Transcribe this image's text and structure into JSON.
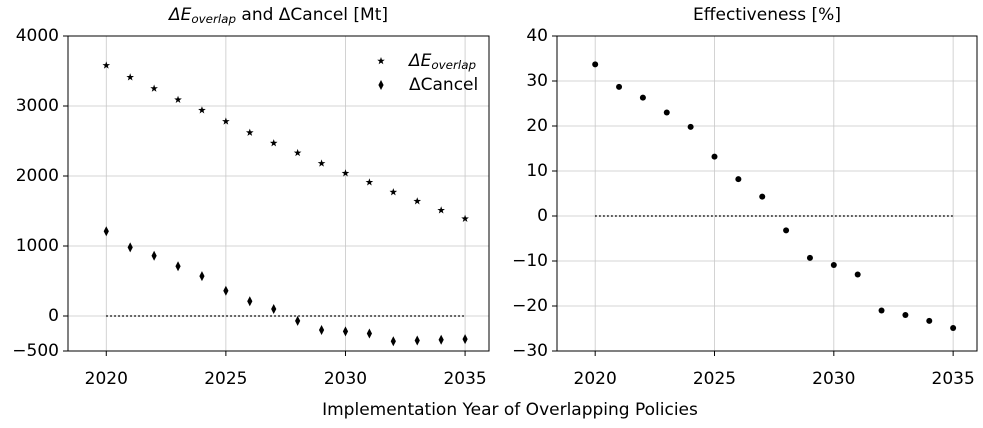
{
  "xlabel": "Implementation Year of Overlapping Policies",
  "chart_data": [
    {
      "type": "scatter",
      "title": [
        "ΔE",
        "overlap",
        " and ΔCancel [Mt]"
      ],
      "x": [
        2020,
        2021,
        2022,
        2023,
        2024,
        2025,
        2026,
        2027,
        2028,
        2029,
        2030,
        2031,
        2032,
        2033,
        2034,
        2035
      ],
      "series": [
        {
          "name": [
            "ΔE",
            "overlap"
          ],
          "color": "#000000",
          "marker": "star",
          "values": [
            3580,
            3410,
            3250,
            3090,
            2940,
            2780,
            2620,
            2470,
            2330,
            2180,
            2040,
            1910,
            1770,
            1640,
            1510,
            1390
          ]
        },
        {
          "name": [
            "ΔCancel"
          ],
          "color": "#000000",
          "marker": "thin_diamond",
          "values": [
            1210,
            980,
            860,
            710,
            570,
            360,
            210,
            100,
            -70,
            -200,
            -220,
            -250,
            -360,
            -350,
            -340,
            -330
          ]
        }
      ],
      "xlim": [
        2018.4,
        2036.0
      ],
      "xticks": [
        2020,
        2025,
        2030,
        2035
      ],
      "ylim": [
        -500,
        4000
      ],
      "yticks": [
        {
          "value": -500,
          "label": "−500"
        },
        0,
        1000,
        2000,
        3000,
        4000
      ],
      "grid": true,
      "legend": "upper right",
      "reference_line": {
        "y": 0,
        "x": [
          2020,
          2035
        ]
      }
    },
    {
      "type": "scatter",
      "title": [
        "Effectiveness [%]"
      ],
      "x": [
        2020,
        2021,
        2022,
        2023,
        2024,
        2025,
        2026,
        2027,
        2028,
        2029,
        2030,
        2031,
        2032,
        2033,
        2034,
        2035
      ],
      "series": [
        {
          "color": "#000000",
          "marker": "circle",
          "values": [
            33.7,
            28.7,
            26.3,
            23.0,
            19.8,
            13.2,
            8.2,
            4.3,
            -3.2,
            -9.3,
            -10.9,
            -13.0,
            -21.0,
            -22.0,
            -23.3,
            -24.9
          ]
        }
      ],
      "xlim": [
        2018.4,
        2036.0
      ],
      "xticks": [
        2020,
        2025,
        2030,
        2035
      ],
      "ylim": [
        -30,
        40
      ],
      "yticks": [
        {
          "value": -30,
          "label": "−30"
        },
        {
          "value": -20,
          "label": "−20"
        },
        {
          "value": -10,
          "label": "−10"
        },
        0,
        10,
        20,
        30,
        40
      ],
      "grid": true,
      "reference_line": {
        "y": 0,
        "x": [
          2020,
          2035
        ]
      }
    }
  ]
}
